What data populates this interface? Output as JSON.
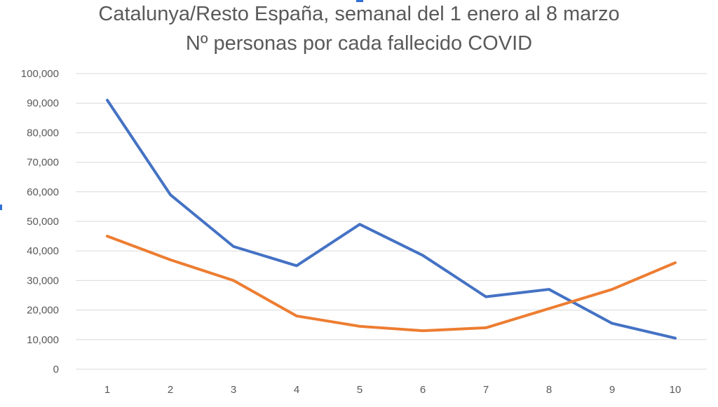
{
  "chart_data": {
    "type": "line",
    "title": "Catalunya/Resto España, semanal del 1 enero al 8 marzo",
    "subtitle": "Nº personas por cada fallecido COVID",
    "x": [
      1,
      2,
      3,
      4,
      5,
      6,
      7,
      8,
      9,
      10
    ],
    "y_ticks": [
      "0",
      "10,000",
      "20,000",
      "30,000",
      "40,000",
      "50,000",
      "60,000",
      "70,000",
      "80,000",
      "90,000",
      "100,000"
    ],
    "ylim": [
      0,
      100000
    ],
    "grid": true,
    "legend": "none",
    "series": [
      {
        "color": "#4472c4",
        "values": [
          91000,
          59000,
          41500,
          35000,
          49000,
          38500,
          24500,
          27000,
          15500,
          10500
        ]
      },
      {
        "color": "#ed7d31",
        "values": [
          45000,
          37000,
          30000,
          18000,
          14500,
          13000,
          14000,
          20500,
          27000,
          36000
        ]
      }
    ]
  }
}
